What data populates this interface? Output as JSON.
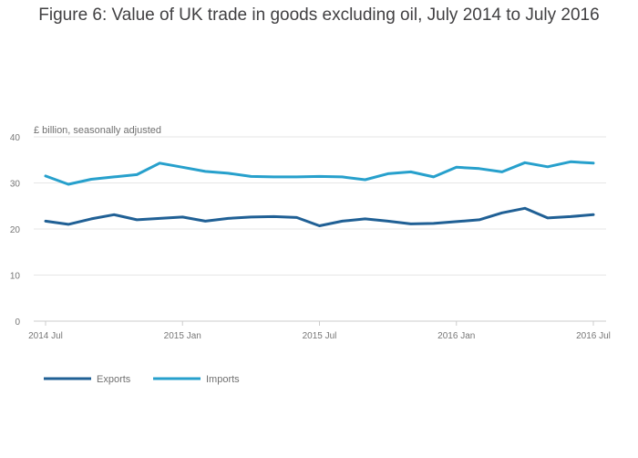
{
  "chart_data": {
    "type": "line",
    "title": "Figure 6: Value of UK trade in goods excluding oil, July 2014 to July 2016",
    "ylabel": "£ billion, seasonally adjusted",
    "xlabel": "",
    "ylim": [
      0,
      40
    ],
    "yticks": [
      0,
      10,
      20,
      30,
      40
    ],
    "x": [
      "2014 Jul",
      "2014 Aug",
      "2014 Sep",
      "2014 Oct",
      "2014 Nov",
      "2014 Dec",
      "2015 Jan",
      "2015 Feb",
      "2015 Mar",
      "2015 Apr",
      "2015 May",
      "2015 Jun",
      "2015 Jul",
      "2015 Aug",
      "2015 Sep",
      "2015 Oct",
      "2015 Nov",
      "2015 Dec",
      "2016 Jan",
      "2016 Feb",
      "2016 Mar",
      "2016 Apr",
      "2016 May",
      "2016 Jun",
      "2016 Jul"
    ],
    "xtick_labels": [
      {
        "index": 0,
        "label": "2014 Jul"
      },
      {
        "index": 6,
        "label": "2015 Jan"
      },
      {
        "index": 12,
        "label": "2015 Jul"
      },
      {
        "index": 18,
        "label": "2016 Jan"
      },
      {
        "index": 24,
        "label": "2016 Jul"
      }
    ],
    "series": [
      {
        "name": "Exports",
        "color": "#206095",
        "values": [
          21.7,
          21.0,
          22.2,
          23.1,
          22.0,
          22.3,
          22.6,
          21.7,
          22.3,
          22.6,
          22.7,
          22.5,
          20.7,
          21.7,
          22.2,
          21.7,
          21.1,
          21.2,
          21.6,
          22.0,
          23.5,
          24.5,
          22.4,
          22.7,
          23.1
        ]
      },
      {
        "name": "Imports",
        "color": "#27a0cc",
        "values": [
          31.5,
          29.7,
          30.8,
          31.3,
          31.8,
          34.3,
          33.4,
          32.5,
          32.1,
          31.4,
          31.3,
          31.3,
          31.4,
          31.3,
          30.7,
          32.0,
          32.4,
          31.3,
          33.4,
          33.1,
          32.4,
          34.4,
          33.5,
          34.6,
          34.3
        ]
      }
    ],
    "legend_position": "bottom-left",
    "grid": true
  }
}
